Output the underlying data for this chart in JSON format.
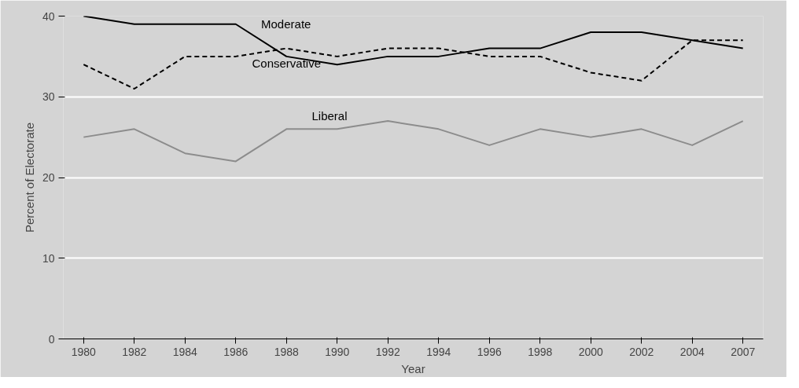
{
  "chart_data": {
    "type": "line",
    "xlabel": "Year",
    "ylabel": "Percent of Electorate",
    "categories": [
      "1980",
      "1982",
      "1984",
      "1986",
      "1988",
      "1990",
      "1992",
      "1994",
      "1996",
      "1998",
      "2000",
      "2002",
      "2004",
      "2007"
    ],
    "series": [
      {
        "name": "Moderate",
        "color": "#000000",
        "line_style": "solid",
        "values": [
          40,
          39,
          39,
          39,
          35,
          34,
          35,
          35,
          36,
          36,
          38,
          38,
          37,
          36
        ]
      },
      {
        "name": "Conservative",
        "color": "#000000",
        "line_style": "dashed",
        "values": [
          34,
          31,
          35,
          35,
          36,
          35,
          36,
          36,
          35,
          35,
          33,
          32,
          37,
          37
        ]
      },
      {
        "name": "Liberal",
        "color": "#8c8c8c",
        "line_style": "solid",
        "values": [
          25,
          26,
          23,
          22,
          26,
          26,
          27,
          26,
          24,
          26,
          25,
          26,
          24,
          27
        ]
      }
    ],
    "ylim": [
      0,
      40
    ],
    "yticks": [
      0,
      10,
      20,
      30,
      40
    ],
    "grid": "y",
    "marker": "none"
  }
}
